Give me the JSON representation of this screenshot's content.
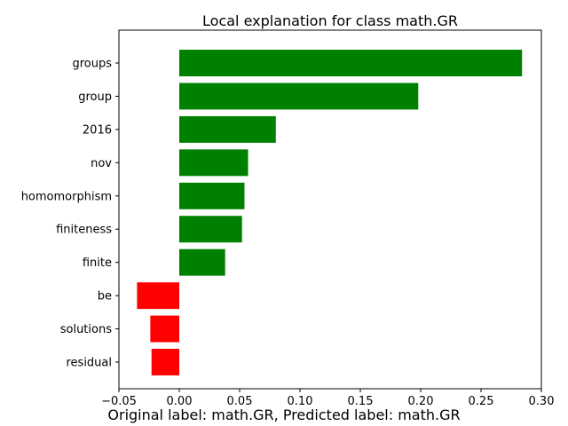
{
  "chart_data": {
    "type": "bar",
    "orientation": "horizontal",
    "title": "Local explanation for class math.GR",
    "categories": [
      "groups",
      "group",
      "2016",
      "nov",
      "homomorphism",
      "finiteness",
      "finite",
      "be",
      "solutions",
      "residual"
    ],
    "values": [
      0.284,
      0.198,
      0.08,
      0.057,
      0.054,
      0.052,
      0.038,
      -0.035,
      -0.024,
      -0.023
    ],
    "xlim": [
      -0.05,
      0.3
    ],
    "xticks": [
      -0.05,
      0.0,
      0.05,
      0.1,
      0.15,
      0.2,
      0.25,
      0.3
    ],
    "xtick_labels": [
      "−0.05",
      "0.00",
      "0.05",
      "0.10",
      "0.15",
      "0.20",
      "0.25",
      "0.30"
    ],
    "xlabel": "",
    "ylabel": "",
    "grid": false,
    "colors": {
      "positive": "#008000",
      "negative": "#ff0000",
      "axis": "#000000"
    }
  },
  "caption": "Original label: math.GR, Predicted label: math.GR"
}
